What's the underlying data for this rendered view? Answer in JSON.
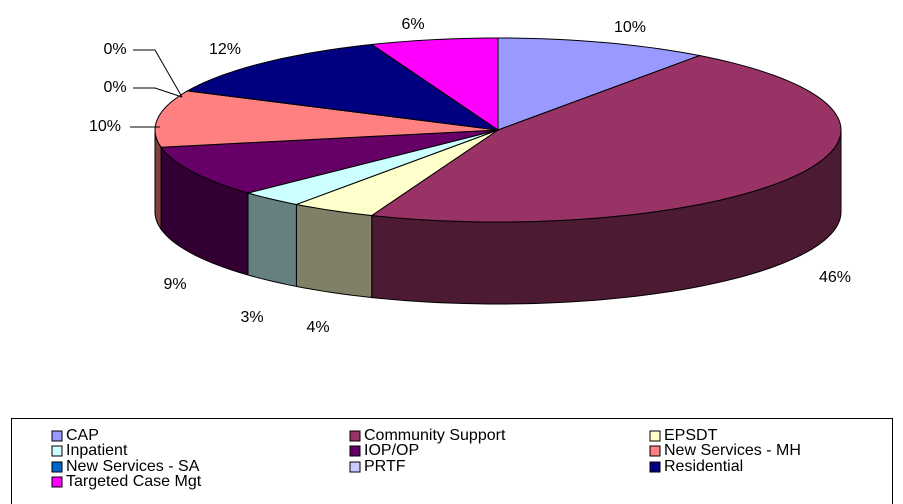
{
  "chart_data": {
    "type": "pie",
    "categories": [
      "CAP",
      "Community Support",
      "EPSDT",
      "Inpatient",
      "IOP/OP",
      "New Services - MH",
      "New Services - SA",
      "PRTF",
      "Residential",
      "Targeted Case Mgt"
    ],
    "values": [
      10,
      46,
      4,
      3,
      9,
      10,
      0,
      0,
      12,
      6
    ],
    "value_labels": [
      "10%",
      "46%",
      "4%",
      "3%",
      "9%",
      "10%",
      "0%",
      "0%",
      "12%",
      "6%"
    ],
    "colors": [
      "#9999ff",
      "#993366",
      "#ffffcc",
      "#ccffff",
      "#660066",
      "#ff8080",
      "#0066cc",
      "#ccccff",
      "#000080",
      "#ff00ff"
    ],
    "legend": "bottom"
  }
}
